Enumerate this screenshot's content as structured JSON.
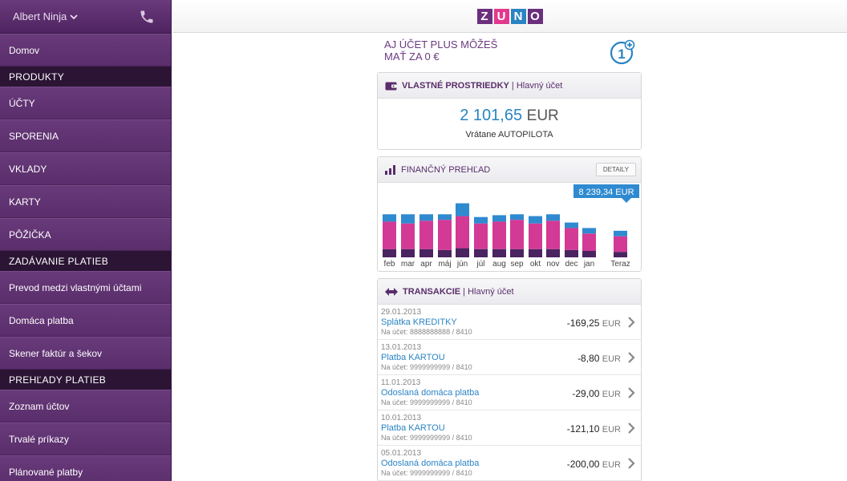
{
  "sidebar": {
    "user": "Albert Ninja",
    "icons": {
      "user_menu": "chevron-down-icon",
      "call": "phone-icon"
    },
    "items": [
      {
        "type": "item",
        "label": "Domov"
      },
      {
        "type": "section",
        "label": "PRODUKTY"
      },
      {
        "type": "item",
        "label": "ÚČTY"
      },
      {
        "type": "item",
        "label": "SPORENIA"
      },
      {
        "type": "item",
        "label": "VKLADY"
      },
      {
        "type": "item",
        "label": "KARTY"
      },
      {
        "type": "item",
        "label": "PÔŽIČKA"
      },
      {
        "type": "section",
        "label": "ZADÁVANIE PLATIEB"
      },
      {
        "type": "item",
        "label": "Prevod medzi vlastnými účtami"
      },
      {
        "type": "item",
        "label": "Domáca platba"
      },
      {
        "type": "item",
        "label": "Skener faktúr a šekov"
      },
      {
        "type": "section",
        "label": "PREHĽADY PLATIEB"
      },
      {
        "type": "item",
        "label": "Zoznam účtov"
      },
      {
        "type": "item",
        "label": "Trvalé príkazy"
      },
      {
        "type": "item",
        "label": "Plánované platby"
      }
    ]
  },
  "header": {
    "logo_letters": [
      "Z",
      "U",
      "N",
      "O"
    ],
    "logo_colors": [
      "#6b2f7d",
      "#e2398e",
      "#2a84c4",
      "#6b2f7d"
    ]
  },
  "promo": {
    "line1": "AJ ÚČET PLUS MÔŽEŠ",
    "line2": "MAŤ ZA 0 €",
    "icon": "one-plus-icon"
  },
  "balance_card": {
    "title": "VLASTNÉ PROSTRIEDKY",
    "separator": " | ",
    "subtitle": "Hlavný účet",
    "icon": "wallet-icon",
    "amount": "2 101,65",
    "currency": "EUR",
    "note": "Vrátane AUTOPILOTA"
  },
  "overview_card": {
    "title": "FINANČNÝ PREHĽAD",
    "icon": "bar-chart-icon",
    "details_label": "DETAILY"
  },
  "colors": {
    "top": "#2f8ad0",
    "middle": "#d23a95",
    "bottom": "#4a2460",
    "accent": "#2a84c4",
    "brand": "#5a2d6a"
  },
  "chart_data": {
    "type": "bar",
    "categories": [
      "feb",
      "mar",
      "apr",
      "máj",
      "jún",
      "júl",
      "aug",
      "sep",
      "okt",
      "nov",
      "dec",
      "jan",
      "Teraz"
    ],
    "series": [
      {
        "values": [
          9,
          9,
          9,
          8,
          10,
          9,
          9,
          9,
          9,
          9,
          8,
          7,
          6
        ]
      },
      {
        "values": [
          30,
          28,
          31,
          33,
          35,
          28,
          30,
          32,
          28,
          31,
          24,
          19,
          17
        ]
      },
      {
        "values": [
          8,
          10,
          7,
          6,
          14,
          7,
          7,
          6,
          8,
          7,
          6,
          6,
          6
        ]
      }
    ],
    "highlight_label": "8 239,34 EUR",
    "ylim": [
      0,
      70
    ]
  },
  "transactions_card": {
    "title": "TRANSAKCIE",
    "separator": " | ",
    "subtitle": "Hlavný účet",
    "icon": "transfer-arrows-icon",
    "currency": "EUR",
    "items": [
      {
        "date": "29.01.2013",
        "name": "Splátka KREDITKY",
        "account": "Na účet: 8888888888 / 8410",
        "amount": "-169,25"
      },
      {
        "date": "13.01.2013",
        "name": "Platba KARTOU",
        "account": "Na účet: 9999999999 / 8410",
        "amount": "-8,80"
      },
      {
        "date": "11.01.2013",
        "name": "Odoslaná domáca platba",
        "account": "Na účet: 9999999999 / 8410",
        "amount": "-29,00"
      },
      {
        "date": "10.01.2013",
        "name": "Platba KARTOU",
        "account": "Na účet: 9999999999 / 8410",
        "amount": "-121,10"
      },
      {
        "date": "05.01.2013",
        "name": "Odoslaná domáca platba",
        "account": "Na účet: 9999999999 / 8410",
        "amount": "-200,00"
      }
    ]
  }
}
